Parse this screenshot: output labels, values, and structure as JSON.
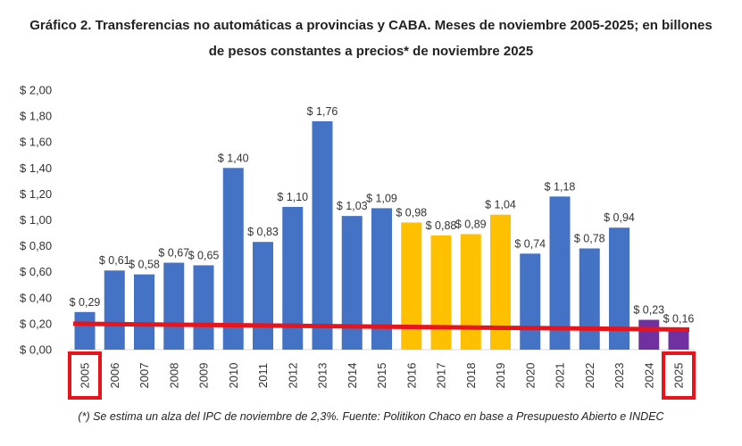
{
  "chart_data": {
    "type": "bar",
    "title_line1": "Gráfico 2. Transferencias no automáticas a provincias y CABA. Meses de noviembre 2005-2025; en billones",
    "title_line2": "de pesos constantes a precios* de noviembre 2025",
    "note": "(*) Se estima un alza del IPC de noviembre de 2,3%. Fuente: Politikon Chaco en base a Presupuesto Abierto e INDEC",
    "xlabel": "",
    "ylabel": "",
    "ylim": [
      0,
      2.0
    ],
    "ytick_step": 0.2,
    "ytick_labels": [
      "$ 0,00",
      "$ 0,20",
      "$ 0,40",
      "$ 0,60",
      "$ 0,80",
      "$ 1,00",
      "$ 1,20",
      "$ 1,40",
      "$ 1,60",
      "$ 1,80",
      "$ 2,00"
    ],
    "grid": false,
    "categories": [
      "2005",
      "2006",
      "2007",
      "2008",
      "2009",
      "2010",
      "2011",
      "2012",
      "2013",
      "2014",
      "2015",
      "2016",
      "2017",
      "2018",
      "2019",
      "2020",
      "2021",
      "2022",
      "2023",
      "2024",
      "2025"
    ],
    "values": [
      0.29,
      0.61,
      0.58,
      0.67,
      0.65,
      1.4,
      0.83,
      1.1,
      1.76,
      1.03,
      1.09,
      0.98,
      0.88,
      0.89,
      1.04,
      0.74,
      1.18,
      0.78,
      0.94,
      0.23,
      0.16
    ],
    "data_labels": [
      "$ 0,29",
      "$ 0,61",
      "$ 0,58",
      "$ 0,67",
      "$ 0,65",
      "$ 1,40",
      "$ 0,83",
      "$ 1,10",
      "$ 1,76",
      "$ 1,03",
      "$ 1,09",
      "$ 0,98",
      "$ 0,88",
      "$ 0,89",
      "$ 1,04",
      "$ 0,74",
      "$ 1,18",
      "$ 0,78",
      "$ 0,94",
      "$ 0,23",
      "$ 0,16"
    ],
    "bar_colors": [
      "#4472c4",
      "#4472c4",
      "#4472c4",
      "#4472c4",
      "#4472c4",
      "#4472c4",
      "#4472c4",
      "#4472c4",
      "#4472c4",
      "#4472c4",
      "#4472c4",
      "#ffc000",
      "#ffc000",
      "#ffc000",
      "#ffc000",
      "#4472c4",
      "#4472c4",
      "#4472c4",
      "#4472c4",
      "#7030a0",
      "#7030a0"
    ],
    "trend_line": {
      "color": "#e8141c",
      "start": {
        "x": "2005",
        "y": 0.2
      },
      "end": {
        "x": "2025",
        "y": 0.155
      }
    },
    "highlighted_categories": [
      "2005",
      "2025"
    ],
    "highlight_color": "#e8141c"
  }
}
